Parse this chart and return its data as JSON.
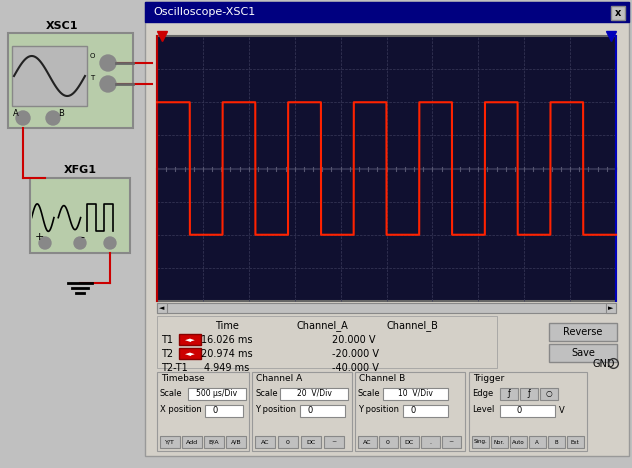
{
  "title": "Oscilloscope-XSC1",
  "bg_color": "#c0c0c0",
  "win_bg": "#d4d0c8",
  "titlebar_color": "#000080",
  "scope_bg": "#101030",
  "grid_color": "#404060",
  "signal_color": "#ff2200",
  "wire_color": "#cc0000",
  "xsc1_label": "XSC1",
  "xfg1_label": "XFG1",
  "measurement_time_hdr": "Time",
  "measurement_cha_hdr": "Channel_A",
  "measurement_chb_hdr": "Channel_B",
  "t1_label": "T1",
  "t2_label": "T2",
  "t2t1_label": "T2-T1",
  "t1_time": "16.026 ms",
  "t2_time": "20.974 ms",
  "t2t1_time": "4.949 ms",
  "t1_cha": "20.000 V",
  "t2_cha": "-20.000 V",
  "t2t1_cha": "-40.000 V",
  "btn_reverse": "Reverse",
  "btn_save": "Save",
  "gnd_label": "GND",
  "tb_scale": "500 µs/Div",
  "tb_xpos": "0",
  "cha_scale": "20  V/Div",
  "cha_ypos": "0",
  "chb_scale": "10  V/Div",
  "chb_ypos": "0",
  "trig_level": "0",
  "trig_unit": "V",
  "lbl_timebase": "Timebase",
  "lbl_cha": "Channel A",
  "lbl_chb": "Channel B",
  "lbl_trigger": "Trigger",
  "lbl_scale": "Scale",
  "lbl_xpos": "X position",
  "lbl_ypos": "Y position",
  "lbl_edge": "Edge",
  "lbl_level": "Level",
  "num_hdiv": 10,
  "num_vdiv": 8,
  "num_cycles": 7,
  "marker1_color": "#cc0000",
  "marker2_color": "#0000bb"
}
